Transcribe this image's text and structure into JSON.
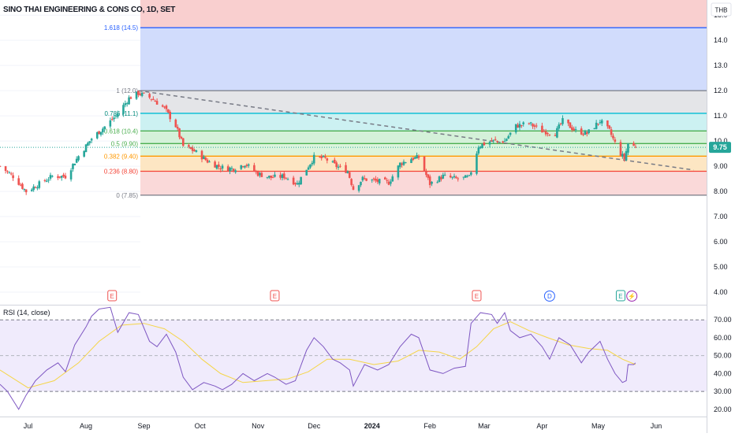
{
  "header": {
    "title": "SINO THAI ENGINEERING & CONS CO, 1D, SET",
    "currency": "THB"
  },
  "last_price": {
    "value": 9.75,
    "label": "9.75",
    "color": "#26a69a"
  },
  "colors": {
    "up": "#26a69a",
    "down": "#ef5350",
    "trendline": "#787b86",
    "rsi": "#7e57c2",
    "rsi_ma": "#f5d547"
  },
  "fib_levels": [
    {
      "label": "1.618 (14.5)",
      "price": 14.5,
      "line": "#2962ff",
      "text": "#2962ff"
    },
    {
      "label": "1 (12.0)",
      "price": 12.0,
      "line": "#787b86",
      "text": "#787b86"
    },
    {
      "label": "0.786 (11.1)",
      "price": 11.1,
      "line": "#00bcd4",
      "text": "#00897b"
    },
    {
      "label": "0.618 (10.4)",
      "price": 10.4,
      "line": "#4caf50",
      "text": "#4caf50"
    },
    {
      "label": "0.5 (9.90)",
      "price": 9.9,
      "line": "#4caf50",
      "text": "#4caf50"
    },
    {
      "label": "0.382 (9.40)",
      "price": 9.4,
      "line": "#ff9800",
      "text": "#ff9800"
    },
    {
      "label": "0.236 (8.80)",
      "price": 8.8,
      "line": "#f44336",
      "text": "#f44336"
    },
    {
      "label": "0 (7.85)",
      "price": 7.85,
      "line": "#787b86",
      "text": "#787b86"
    }
  ],
  "fib_zones": [
    {
      "from": 14.5,
      "to": 15.6,
      "color": "#f8c7c7"
    },
    {
      "from": 12.0,
      "to": 14.5,
      "color": "#c9d6fb"
    },
    {
      "from": 11.1,
      "to": 12.0,
      "color": "#dfe0e4"
    },
    {
      "from": 10.4,
      "to": 11.1,
      "color": "#c3eef0"
    },
    {
      "from": 9.9,
      "to": 10.4,
      "color": "#ccefd2"
    },
    {
      "from": 9.4,
      "to": 9.9,
      "color": "#d6f2d6"
    },
    {
      "from": 8.8,
      "to": 9.4,
      "color": "#fde2b9"
    },
    {
      "from": 7.85,
      "to": 8.8,
      "color": "#f9d2d2"
    }
  ],
  "events": [
    {
      "label": "E",
      "date": "2023-08-15",
      "kind": "earnings"
    },
    {
      "label": "E",
      "date": "2023-11-10",
      "kind": "earnings"
    },
    {
      "label": "E",
      "date": "2024-02-26",
      "kind": "earnings"
    },
    {
      "label": "D",
      "date": "2024-04-05",
      "kind": "dividend"
    },
    {
      "label": "E",
      "date": "2024-05-13",
      "kind": "earnings-recent"
    },
    {
      "label": "⚡",
      "date": "2024-05-19",
      "kind": "split"
    }
  ],
  "rsi": {
    "label": "RSI (14, close)",
    "axis_ticks": [
      "70.00",
      "60.00",
      "50.00",
      "40.00",
      "30.00",
      "20.00"
    ],
    "upper": 70,
    "lower": 30,
    "middle": 50
  },
  "chart_data": [
    {
      "type": "candlestick",
      "title": "SINO THAI ENGINEERING & CONS CO, 1D, SET",
      "ylim": [
        3.5,
        15.6
      ],
      "y_ticks": [
        "15.0",
        "14.0",
        "13.0",
        "12.0",
        "11.0",
        "10.0",
        "9.00",
        "8.00",
        "7.00",
        "6.00",
        "5.00",
        "4.00"
      ],
      "x_ticks": [
        "Jul",
        "Aug",
        "Sep",
        "Oct",
        "Nov",
        "Dec",
        "2024",
        "Feb",
        "Mar",
        "Apr",
        "May",
        "Jun"
      ],
      "x_start": "2023-06-16",
      "x_end": "2024-06-28",
      "anchors": [
        [
          "2023-06-16",
          9.0
        ],
        [
          "2023-06-23",
          8.6
        ],
        [
          "2023-06-30",
          8.0
        ],
        [
          "2023-07-07",
          8.3
        ],
        [
          "2023-07-14",
          8.6
        ],
        [
          "2023-07-21",
          8.6
        ],
        [
          "2023-07-28",
          9.4
        ],
        [
          "2023-08-04",
          10.1
        ],
        [
          "2023-08-10",
          10.5
        ],
        [
          "2023-08-17",
          11.0
        ],
        [
          "2023-08-24",
          11.7
        ],
        [
          "2023-08-29",
          11.9
        ],
        [
          "2023-09-05",
          11.7
        ],
        [
          "2023-09-12",
          11.3
        ],
        [
          "2023-09-18",
          10.6
        ],
        [
          "2023-09-22",
          9.8
        ],
        [
          "2023-09-28",
          9.6
        ],
        [
          "2023-10-05",
          9.2
        ],
        [
          "2023-10-12",
          8.95
        ],
        [
          "2023-10-19",
          8.9
        ],
        [
          "2023-10-25",
          9.1
        ],
        [
          "2023-11-01",
          8.7
        ],
        [
          "2023-11-08",
          8.55
        ],
        [
          "2023-11-15",
          8.6
        ],
        [
          "2023-11-22",
          8.3
        ],
        [
          "2023-11-27",
          8.9
        ],
        [
          "2023-12-01",
          9.35
        ],
        [
          "2023-12-07",
          9.3
        ],
        [
          "2023-12-13",
          9.0
        ],
        [
          "2023-12-19",
          8.8
        ],
        [
          "2023-12-22",
          8.1
        ],
        [
          "2023-12-27",
          8.5
        ],
        [
          "2024-01-04",
          8.4
        ],
        [
          "2024-01-10",
          8.35
        ],
        [
          "2024-01-16",
          9.1
        ],
        [
          "2024-01-22",
          9.3
        ],
        [
          "2024-01-26",
          9.35
        ],
        [
          "2024-02-01",
          8.3
        ],
        [
          "2024-02-08",
          8.6
        ],
        [
          "2024-02-15",
          8.5
        ],
        [
          "2024-02-22",
          8.55
        ],
        [
          "2024-02-27",
          9.8
        ],
        [
          "2024-03-05",
          10.0
        ],
        [
          "2024-03-12",
          10.0
        ],
        [
          "2024-03-18",
          10.6
        ],
        [
          "2024-03-25",
          10.7
        ],
        [
          "2024-04-01",
          10.4
        ],
        [
          "2024-04-08",
          10.3
        ],
        [
          "2024-04-12",
          10.8
        ],
        [
          "2024-04-19",
          10.4
        ],
        [
          "2024-04-25",
          10.3
        ],
        [
          "2024-05-02",
          10.8
        ],
        [
          "2024-05-07",
          10.4
        ],
        [
          "2024-05-12",
          9.6
        ],
        [
          "2024-05-15",
          9.3
        ],
        [
          "2024-05-17",
          9.9
        ],
        [
          "2024-05-21",
          9.75
        ]
      ],
      "trendline": {
        "from": [
          "2023-08-29",
          12.0
        ],
        "to": [
          "2024-06-21",
          8.85
        ]
      }
    },
    {
      "type": "line",
      "title": "RSI (14, close)",
      "ylim": [
        16,
        78
      ],
      "series": [
        {
          "name": "RSI",
          "points": [
            [
              "2023-06-16",
              34
            ],
            [
              "2023-06-20",
              30
            ],
            [
              "2023-06-23",
              25
            ],
            [
              "2023-06-26",
              20
            ],
            [
              "2023-06-30",
              28
            ],
            [
              "2023-07-05",
              36
            ],
            [
              "2023-07-11",
              42
            ],
            [
              "2023-07-17",
              46
            ],
            [
              "2023-07-21",
              41
            ],
            [
              "2023-07-26",
              56
            ],
            [
              "2023-08-01",
              66
            ],
            [
              "2023-08-04",
              72
            ],
            [
              "2023-08-08",
              76
            ],
            [
              "2023-08-14",
              77
            ],
            [
              "2023-08-18",
              63
            ],
            [
              "2023-08-24",
              74
            ],
            [
              "2023-08-29",
              73
            ],
            [
              "2023-09-04",
              58
            ],
            [
              "2023-09-08",
              55
            ],
            [
              "2023-09-13",
              62
            ],
            [
              "2023-09-18",
              52
            ],
            [
              "2023-09-22",
              38
            ],
            [
              "2023-09-27",
              31
            ],
            [
              "2023-10-03",
              35
            ],
            [
              "2023-10-09",
              33
            ],
            [
              "2023-10-13",
              31
            ],
            [
              "2023-10-18",
              34
            ],
            [
              "2023-10-24",
              40
            ],
            [
              "2023-10-30",
              36
            ],
            [
              "2023-11-06",
              40
            ],
            [
              "2023-11-10",
              38
            ],
            [
              "2023-11-16",
              34
            ],
            [
              "2023-11-21",
              36
            ],
            [
              "2023-11-27",
              53
            ],
            [
              "2023-12-01",
              60
            ],
            [
              "2023-12-06",
              55
            ],
            [
              "2023-12-11",
              48
            ],
            [
              "2023-12-15",
              46
            ],
            [
              "2023-12-20",
              42
            ],
            [
              "2023-12-22",
              33
            ],
            [
              "2023-12-28",
              45
            ],
            [
              "2024-01-04",
              42
            ],
            [
              "2024-01-10",
              45
            ],
            [
              "2024-01-16",
              55
            ],
            [
              "2024-01-22",
              62
            ],
            [
              "2024-01-26",
              60
            ],
            [
              "2024-02-01",
              42
            ],
            [
              "2024-02-08",
              40
            ],
            [
              "2024-02-14",
              43
            ],
            [
              "2024-02-20",
              44
            ],
            [
              "2024-02-23",
              68
            ],
            [
              "2024-02-28",
              74
            ],
            [
              "2024-03-05",
              73
            ],
            [
              "2024-03-08",
              68
            ],
            [
              "2024-03-12",
              74
            ],
            [
              "2024-03-15",
              64
            ],
            [
              "2024-03-20",
              60
            ],
            [
              "2024-03-26",
              62
            ],
            [
              "2024-04-01",
              55
            ],
            [
              "2024-04-05",
              48
            ],
            [
              "2024-04-10",
              60
            ],
            [
              "2024-04-16",
              56
            ],
            [
              "2024-04-22",
              46
            ],
            [
              "2024-04-26",
              52
            ],
            [
              "2024-05-02",
              58
            ],
            [
              "2024-05-06",
              48
            ],
            [
              "2024-05-10",
              40
            ],
            [
              "2024-05-14",
              35
            ],
            [
              "2024-05-16",
              36
            ],
            [
              "2024-05-17",
              45
            ],
            [
              "2024-05-20",
              45
            ],
            [
              "2024-05-21",
              46
            ]
          ]
        },
        {
          "name": "RSI-based MA",
          "points": [
            [
              "2023-06-16",
              42
            ],
            [
              "2023-07-01",
              32
            ],
            [
              "2023-07-15",
              36
            ],
            [
              "2023-07-28",
              46
            ],
            [
              "2023-08-08",
              58
            ],
            [
              "2023-08-20",
              67
            ],
            [
              "2023-09-01",
              68
            ],
            [
              "2023-09-12",
              65
            ],
            [
              "2023-09-22",
              58
            ],
            [
              "2023-10-02",
              48
            ],
            [
              "2023-10-12",
              40
            ],
            [
              "2023-10-24",
              35
            ],
            [
              "2023-11-05",
              36
            ],
            [
              "2023-11-17",
              37
            ],
            [
              "2023-11-28",
              41
            ],
            [
              "2023-12-08",
              48
            ],
            [
              "2023-12-20",
              48
            ],
            [
              "2024-01-02",
              45
            ],
            [
              "2024-01-15",
              47
            ],
            [
              "2024-01-26",
              53
            ],
            [
              "2024-02-06",
              52
            ],
            [
              "2024-02-17",
              48
            ],
            [
              "2024-02-26",
              55
            ],
            [
              "2024-03-06",
              65
            ],
            [
              "2024-03-15",
              69
            ],
            [
              "2024-03-25",
              64
            ],
            [
              "2024-04-04",
              60
            ],
            [
              "2024-04-15",
              56
            ],
            [
              "2024-04-26",
              54
            ],
            [
              "2024-05-06",
              53
            ],
            [
              "2024-05-14",
              48
            ],
            [
              "2024-05-21",
              45
            ]
          ]
        }
      ]
    }
  ]
}
